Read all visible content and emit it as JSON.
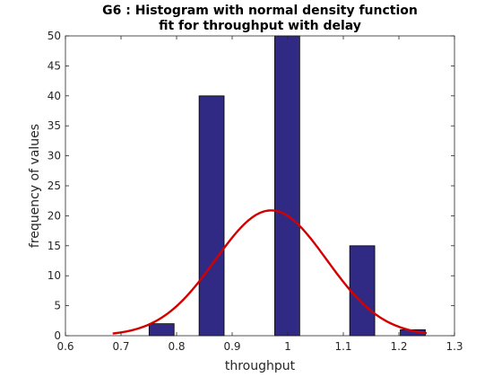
{
  "chart_data": {
    "type": "bar",
    "title_line1": "G6 : Histogram with normal density function",
    "title_line2": "fit for throughput with delay",
    "xlabel": "throughput",
    "ylabel": "frequency of values",
    "xlim": [
      0.6,
      1.3
    ],
    "ylim": [
      0,
      50
    ],
    "xticks": [
      "0.6",
      "0.7",
      "0.8",
      "0.9",
      "1",
      "1.1",
      "1.2",
      "1.3"
    ],
    "yticks": [
      "0",
      "5",
      "10",
      "15",
      "20",
      "25",
      "30",
      "35",
      "40",
      "45",
      "50"
    ],
    "bar_width": 0.045,
    "bars": [
      {
        "x": 0.773,
        "value": 2
      },
      {
        "x": 0.818,
        "value": 0
      },
      {
        "x": 0.863,
        "value": 40
      },
      {
        "x": 0.908,
        "value": 0
      },
      {
        "x": 0.953,
        "value": 0
      },
      {
        "x": 0.999,
        "value": 50
      },
      {
        "x": 1.044,
        "value": 0
      },
      {
        "x": 1.089,
        "value": 0
      },
      {
        "x": 1.134,
        "value": 15
      },
      {
        "x": 1.179,
        "value": 0
      },
      {
        "x": 1.225,
        "value": 1
      }
    ],
    "fit": {
      "type": "normal",
      "peak_x": 0.97,
      "peak_y": 20.9,
      "sigma": 0.1,
      "x_range": [
        0.685,
        1.25
      ],
      "color": "#d40000"
    },
    "bar_color": "#302a84",
    "bar_edge_color": "#000000",
    "grid": false,
    "box": true
  }
}
